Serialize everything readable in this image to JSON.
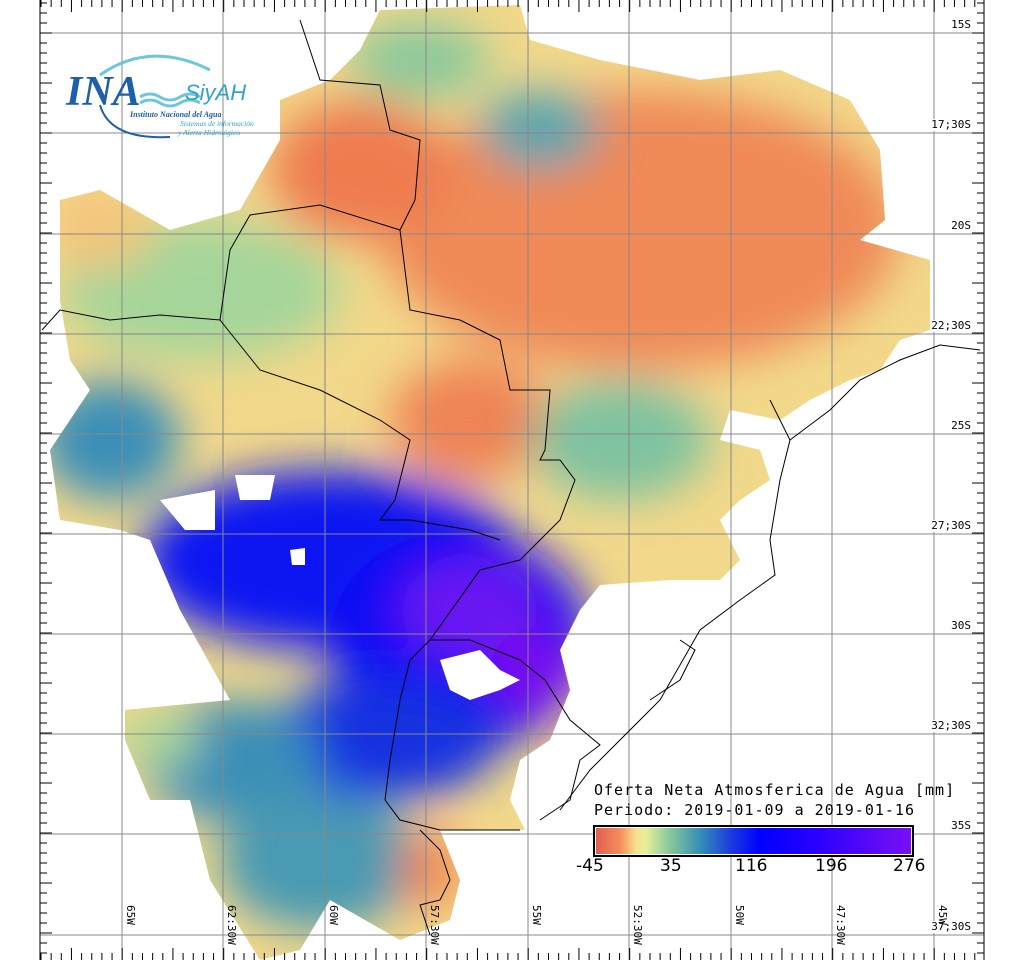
{
  "logo": {
    "main": "INA",
    "sub": "SiyAH",
    "institute": "Instituto Nacional del Agua",
    "tagline1": "Sistemas de información",
    "tagline2": "y Alerta Hidrológico"
  },
  "latitude_labels": [
    "15S",
    "17;30S",
    "20S",
    "22;30S",
    "25S",
    "27;30S",
    "30S",
    "32;30S",
    "35S",
    "37;30S"
  ],
  "longitude_labels": [
    "65W",
    "62:30W",
    "60W",
    "57:30W",
    "55W",
    "52:30W",
    "50W",
    "47:30W",
    "45W"
  ],
  "legend": {
    "title": "Oferta Neta Atmosferica de Agua [mm]",
    "period": "Periodo: 2019-01-09 a 2019-01-16",
    "ticks": [
      "-45",
      "35",
      "116",
      "196",
      "276"
    ],
    "colors": [
      "#e35b50",
      "#f7e18e",
      "#8dcb9c",
      "#3690b8",
      "#0000ff",
      "#7a10f5"
    ]
  }
}
